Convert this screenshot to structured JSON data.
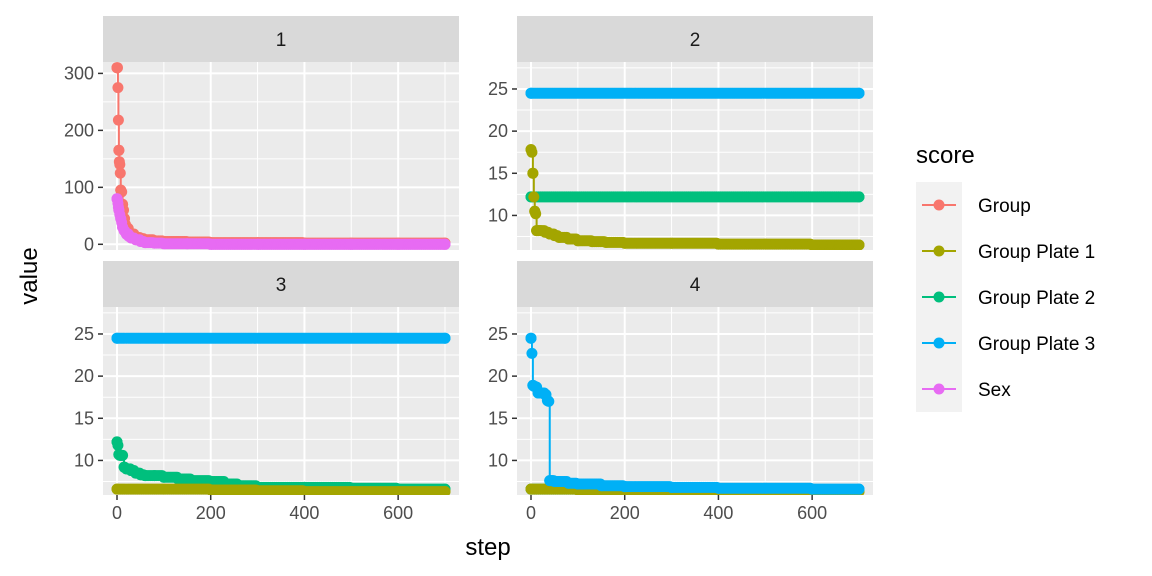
{
  "chart_data": {
    "type": "line",
    "facet_type": "wrap",
    "xlabel": "step",
    "ylabel": "value",
    "legend": {
      "title": "score",
      "position": "right",
      "entries": [
        {
          "name": "Group",
          "color": "#F8766D"
        },
        {
          "name": "Group Plate 1",
          "color": "#A3A500"
        },
        {
          "name": "Group Plate 2",
          "color": "#00BF7D"
        },
        {
          "name": "Group Plate 3",
          "color": "#00B0F6"
        },
        {
          "name": "Sex",
          "color": "#E76BF3"
        }
      ]
    },
    "xlim": [
      0,
      700
    ],
    "x_ticks": [
      0,
      200,
      400,
      600
    ],
    "x_tick_labels": [
      "0",
      "200",
      "400",
      "600"
    ],
    "grid": true,
    "panels": [
      {
        "strip": "1",
        "ylim": [
          -10,
          320
        ],
        "y_ticks": [
          0,
          100,
          200,
          300
        ],
        "y_tick_labels": [
          "0",
          "100",
          "200",
          "300"
        ],
        "series": [
          {
            "name": "Group",
            "color": "#F8766D",
            "x": [
              0,
              1,
              2,
              3,
              4,
              5,
              6,
              7,
              8,
              10,
              12,
              14,
              16,
              18,
              20,
              25,
              30,
              40,
              50,
              60,
              80,
              100,
              150,
              200,
              300,
              400,
              500,
              600,
              700
            ],
            "y": [
              310,
              310,
              275,
              218,
              165,
              145,
              140,
              125,
              95,
              92,
              70,
              60,
              45,
              35,
              28,
              20,
              18,
              12,
              10,
              8,
              6,
              5,
              4,
              3,
              3,
              2,
              2,
              2,
              2
            ]
          },
          {
            "name": "Sex",
            "color": "#E76BF3",
            "x": [
              0,
              1,
              2,
              3,
              4,
              6,
              8,
              10,
              12,
              15,
              20,
              25,
              30,
              40,
              50,
              60,
              80,
              100,
              150,
              200,
              300,
              400,
              500,
              600,
              700
            ],
            "y": [
              80,
              78,
              72,
              65,
              60,
              52,
              45,
              38,
              30,
              24,
              18,
              14,
              11,
              8,
              5,
              3,
              2,
              1,
              1,
              0,
              0,
              0,
              0,
              0,
              0
            ]
          }
        ]
      },
      {
        "strip": "2",
        "ylim": [
          5.9,
          28.2
        ],
        "y_ticks": [
          10,
          15,
          20,
          25
        ],
        "y_tick_labels": [
          "10",
          "15",
          "20",
          "25"
        ],
        "series": [
          {
            "name": "Group Plate 3",
            "color": "#00B0F6",
            "x": [
              0,
              700
            ],
            "y": [
              24.5,
              24.5
            ]
          },
          {
            "name": "Group Plate 2",
            "color": "#00BF7D",
            "x": [
              0,
              700
            ],
            "y": [
              12.2,
              12.2
            ]
          },
          {
            "name": "Group Plate 1",
            "color": "#A3A500",
            "x": [
              0,
              2,
              4,
              6,
              8,
              10,
              12,
              15,
              20,
              30,
              40,
              50,
              60,
              80,
              100,
              130,
              160,
              200,
              300,
              400,
              500,
              600,
              700
            ],
            "y": [
              17.8,
              17.5,
              15.0,
              12.2,
              10.5,
              10.2,
              8.2,
              8.2,
              8.2,
              8.0,
              7.8,
              7.6,
              7.4,
              7.2,
              7.0,
              6.9,
              6.8,
              6.7,
              6.7,
              6.6,
              6.6,
              6.5,
              6.5
            ]
          }
        ]
      },
      {
        "strip": "3",
        "ylim": [
          5.9,
          28.2
        ],
        "y_ticks": [
          10,
          15,
          20,
          25
        ],
        "y_tick_labels": [
          "10",
          "15",
          "20",
          "25"
        ],
        "series": [
          {
            "name": "Group Plate 3",
            "color": "#00B0F6",
            "x": [
              0,
              700
            ],
            "y": [
              24.5,
              24.5
            ]
          },
          {
            "name": "Group Plate 2",
            "color": "#00BF7D",
            "x": [
              0,
              2,
              4,
              6,
              10,
              15,
              20,
              30,
              40,
              50,
              60,
              80,
              100,
              130,
              160,
              200,
              230,
              260,
              300,
              400,
              500,
              600,
              700
            ],
            "y": [
              12.2,
              11.8,
              10.7,
              10.6,
              10.6,
              9.2,
              9.0,
              8.8,
              8.5,
              8.3,
              8.2,
              8.2,
              8.0,
              7.8,
              7.6,
              7.5,
              7.2,
              7.0,
              6.8,
              6.8,
              6.7,
              6.6,
              6.6
            ]
          },
          {
            "name": "Group Plate 1",
            "color": "#A3A500",
            "x": [
              0,
              100,
              200,
              300,
              400,
              500,
              600,
              700
            ],
            "y": [
              6.6,
              6.6,
              6.5,
              6.4,
              6.3,
              6.3,
              6.3,
              6.3
            ]
          }
        ]
      },
      {
        "strip": "4",
        "ylim": [
          5.9,
          28.2
        ],
        "y_ticks": [
          10,
          15,
          20,
          25
        ],
        "y_tick_labels": [
          "10",
          "15",
          "20",
          "25"
        ],
        "series": [
          {
            "name": "Group Plate 2",
            "color": "#00BF7D",
            "x": [
              0,
              100,
              200,
              300,
              400,
              500,
              600,
              700
            ],
            "y": [
              6.6,
              6.6,
              6.5,
              6.5,
              6.5,
              6.5,
              6.4,
              6.4
            ]
          },
          {
            "name": "Group Plate 1",
            "color": "#A3A500",
            "x": [
              0,
              100,
              200,
              300,
              400,
              500,
              600,
              700
            ],
            "y": [
              6.6,
              6.5,
              6.4,
              6.3,
              6.3,
              6.3,
              6.3,
              6.3
            ]
          },
          {
            "name": "Group Plate 3",
            "color": "#00B0F6",
            "x": [
              0,
              2,
              4,
              6,
              10,
              15,
              20,
              30,
              35,
              38,
              40,
              42,
              45,
              50,
              60,
              80,
              100,
              150,
              200,
              300,
              400,
              500,
              600,
              700
            ],
            "y": [
              24.5,
              22.7,
              18.9,
              18.8,
              18.7,
              18.0,
              18.0,
              17.8,
              17.1,
              17.0,
              7.6,
              7.6,
              7.6,
              7.5,
              7.5,
              7.3,
              7.2,
              7.0,
              6.9,
              6.8,
              6.7,
              6.7,
              6.6,
              6.6
            ]
          }
        ]
      }
    ]
  }
}
